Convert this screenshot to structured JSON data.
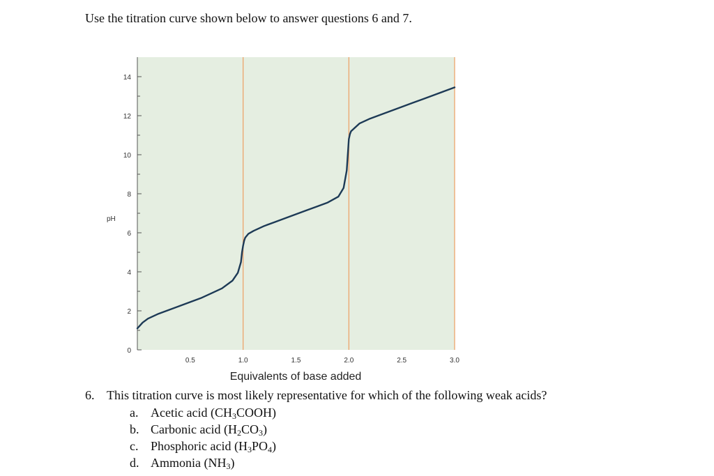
{
  "instruction": "Use the titration curve shown below to answer questions 6 and 7.",
  "chart_data": {
    "type": "line",
    "title": "",
    "xlabel": "Equivalents of base added",
    "ylabel": "pH",
    "xlim": [
      0,
      3.0
    ],
    "ylim": [
      0,
      15
    ],
    "x_ticks": [
      0.5,
      1.0,
      1.5,
      2.0,
      2.5,
      3.0
    ],
    "x_tick_labels": [
      "0.5",
      "1.0",
      "1.5",
      "2.0",
      "2.5",
      "3.0"
    ],
    "y_ticks": [
      0,
      2,
      4,
      6,
      8,
      10,
      12,
      14
    ],
    "y_tick_labels": [
      "0",
      "2",
      "4",
      "6",
      "8",
      "10",
      "12",
      "14"
    ],
    "equivalence_lines_x": [
      1.0,
      2.0
    ],
    "grid": false,
    "colors": {
      "background": "#e5eee1",
      "curve": "#1d3a56",
      "equivalence_line": "#ec9e62",
      "axis": "#555555"
    },
    "series": [
      {
        "x": [
          0,
          0.05,
          0.1,
          0.2,
          0.3,
          0.4,
          0.5,
          0.6,
          0.7,
          0.8,
          0.9,
          0.95,
          0.98,
          0.99,
          1.0,
          1.01,
          1.02,
          1.05,
          1.1,
          1.2,
          1.3,
          1.4,
          1.5,
          1.6,
          1.7,
          1.8,
          1.9,
          1.95,
          1.98,
          1.99,
          2.0,
          2.01,
          2.02,
          2.05,
          2.1,
          2.2,
          2.3,
          2.4,
          2.5,
          2.6,
          2.7,
          2.8,
          2.9,
          3.0
        ],
        "y": [
          1.1,
          1.4,
          1.6,
          1.85,
          2.05,
          2.25,
          2.45,
          2.65,
          2.9,
          3.15,
          3.55,
          3.95,
          4.5,
          5.0,
          5.35,
          5.6,
          5.75,
          5.95,
          6.1,
          6.35,
          6.55,
          6.75,
          6.95,
          7.15,
          7.35,
          7.55,
          7.85,
          8.3,
          9.2,
          10.0,
          10.8,
          11.05,
          11.2,
          11.35,
          11.6,
          11.85,
          12.05,
          12.25,
          12.45,
          12.65,
          12.85,
          13.05,
          13.25,
          13.45
        ]
      }
    ]
  },
  "question": {
    "number": "6.",
    "text": "This titration curve is most likely representative for which of the following weak acids?",
    "options": [
      {
        "letter": "a.",
        "name": "Acetic acid (",
        "formula": [
          {
            "t": "CH"
          },
          {
            "s": "3"
          },
          {
            "t": "COOH"
          }
        ],
        "close": ")"
      },
      {
        "letter": "b.",
        "name": "Carbonic acid (",
        "formula": [
          {
            "t": "H"
          },
          {
            "s": "2"
          },
          {
            "t": "CO"
          },
          {
            "s": "3"
          }
        ],
        "close": ")"
      },
      {
        "letter": "c.",
        "name": "Phosphoric acid (",
        "formula": [
          {
            "t": "H"
          },
          {
            "s": "3"
          },
          {
            "t": "PO"
          },
          {
            "s": "4"
          }
        ],
        "close": ")"
      },
      {
        "letter": "d.",
        "name": "Ammonia (",
        "formula": [
          {
            "t": "NH"
          },
          {
            "s": "3"
          }
        ],
        "close": ")"
      }
    ]
  }
}
